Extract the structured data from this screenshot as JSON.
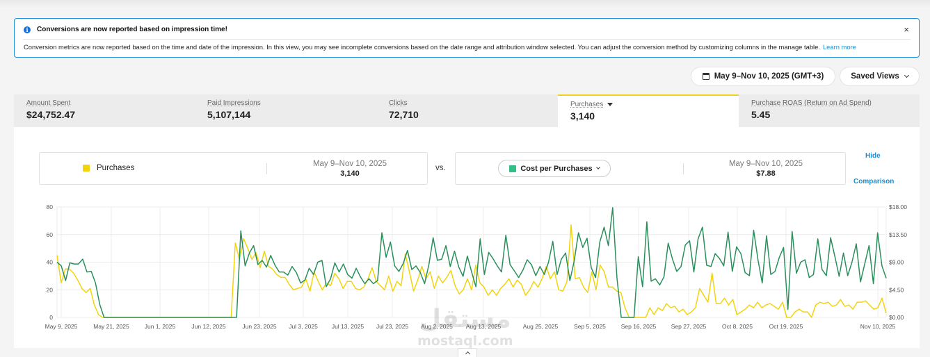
{
  "banner": {
    "title": "Conversions are now reported based on impression time!",
    "body": "Conversion metrics are now reported based on the time and date of the impression. In this view, you may see incomplete conversions based on the date range and attribution window selected. You can adjust the conversion method by customizing columns in the manage table.",
    "link": "Learn more",
    "close": "×"
  },
  "toolbar": {
    "date_range": "May 9–Nov 10, 2025 (GMT+3)",
    "saved_views": "Saved Views"
  },
  "metrics": [
    {
      "label": "Amount Spent",
      "value": "$24,752.47"
    },
    {
      "label": "Paid Impressions",
      "value": "5,107,144"
    },
    {
      "label": "Clicks",
      "value": "72,710"
    },
    {
      "label": "Purchases",
      "value": "3,140"
    },
    {
      "label": "Purchase ROAS (Return on Ad Spend)",
      "value": "5.45"
    }
  ],
  "comparison": {
    "left_metric": "Purchases",
    "left_range": "May 9–Nov 10, 2025",
    "left_value": "3,140",
    "vs": "vs.",
    "right_metric": "Cost per Purchases",
    "right_range": "May 9–Nov 10, 2025",
    "right_value": "$7.88",
    "hide": "Hide",
    "comparison": "Comparison"
  },
  "colors": {
    "purchases": "#f2d40e",
    "cost": "#2a8f5c"
  },
  "chart_data": {
    "type": "line",
    "x_ticks": [
      "May 9, 2025",
      "May 21, 2025",
      "Jun 1, 2025",
      "Jun 12, 2025",
      "Jun 23, 2025",
      "Jul 3, 2025",
      "Jul 13, 2025",
      "Jul 23, 2025",
      "Aug 2, 2025",
      "Aug 13, 2025",
      "Aug 25, 2025",
      "Sep 5, 2025",
      "Sep 16, 2025",
      "Sep 27, 2025",
      "Oct 8, 2025",
      "Oct 19, 2025",
      "Nov 10, 2025"
    ],
    "y_left_ticks": [
      "0",
      "20",
      "40",
      "60",
      "80"
    ],
    "y_right_ticks": [
      "$0.00",
      "$4.50",
      "$9.00",
      "$13.50",
      "$18.00"
    ],
    "ylim_left": [
      0,
      80
    ],
    "ylim_right": [
      0,
      18
    ],
    "grid": true,
    "series": [
      {
        "name": "Purchases",
        "axis": "left",
        "values": [
          45,
          25,
          35,
          35,
          32,
          27,
          21,
          18,
          21,
          9,
          2,
          0,
          0,
          0,
          0,
          0,
          0,
          0,
          0,
          0,
          0,
          0,
          0,
          0,
          0,
          0,
          0,
          0,
          0,
          0,
          0,
          0,
          0,
          0,
          0,
          0,
          0,
          0,
          0,
          0,
          0,
          0,
          0,
          54,
          42,
          57,
          50,
          42,
          47,
          36,
          48,
          37,
          35,
          31,
          29,
          29,
          24,
          20,
          21,
          22,
          28,
          19,
          33,
          26,
          20,
          25,
          23,
          32,
          28,
          21,
          26,
          26,
          21,
          20,
          22,
          28,
          36,
          26,
          23,
          20,
          30,
          19,
          26,
          23,
          46,
          33,
          19,
          27,
          37,
          28,
          33,
          21,
          30,
          25,
          29,
          34,
          23,
          17,
          20,
          28,
          20,
          38,
          25,
          22,
          16,
          20,
          16,
          21,
          24,
          28,
          22,
          27,
          24,
          16,
          20,
          26,
          22,
          28,
          37,
          28,
          33,
          20,
          19,
          26,
          67,
          28,
          29,
          22,
          18,
          33,
          20,
          38,
          33,
          22,
          22,
          19,
          18,
          7,
          0,
          0,
          0,
          0,
          0,
          7,
          2,
          7,
          5,
          10,
          7,
          8,
          4,
          6,
          2,
          4,
          7,
          21,
          16,
          11,
          32,
          10,
          10,
          14,
          9,
          13,
          2,
          4,
          6,
          9,
          7,
          11,
          7,
          9,
          10,
          8,
          6,
          11,
          0,
          0,
          4,
          6,
          4,
          4,
          0,
          9,
          11,
          10,
          11,
          8,
          9,
          13,
          8,
          9,
          6,
          11,
          11,
          12,
          9,
          6,
          7,
          14,
          3
        ]
      },
      {
        "name": "Cost per Purchases",
        "axis": "right",
        "values": [
          9.0,
          8.4,
          6.0,
          8.9,
          8.7,
          8.7,
          9.5,
          7.4,
          7.5,
          5.6,
          2.1,
          0,
          0,
          0,
          0,
          0,
          0,
          0,
          0,
          0,
          0,
          0,
          0,
          0,
          0,
          0,
          0,
          0,
          0,
          0,
          0,
          0,
          0,
          0,
          0,
          0,
          0,
          0,
          0,
          0,
          0,
          0,
          0,
          14.1,
          8.4,
          10.5,
          11.7,
          8.6,
          9.3,
          8.2,
          10.1,
          8.5,
          7.4,
          7.4,
          6.9,
          8.3,
          7.3,
          5.6,
          6.1,
          8.0,
          7.0,
          9.0,
          9.3,
          5.0,
          6.3,
          8.9,
          7.4,
          8.7,
          7.0,
          6.4,
          8.0,
          6.6,
          5.5,
          6.3,
          5.5,
          6.0,
          13.8,
          9.8,
          12.3,
          8.4,
          7.5,
          8.8,
          10.9,
          7.8,
          8.4,
          7.3,
          5.5,
          8.6,
          13.0,
          9.3,
          9.5,
          11.7,
          8.3,
          10.8,
          8.2,
          6.7,
          10.0,
          7.4,
          5.0,
          12.8,
          7.0,
          10.6,
          9.6,
          8.4,
          7.4,
          13.4,
          8.6,
          7.6,
          6.5,
          7.7,
          9.4,
          8.6,
          6.8,
          8.3,
          7.0,
          9.0,
          12.4,
          7.0,
          9.5,
          10.5,
          6.0,
          9.2,
          13.8,
          11.4,
          12.9,
          8.1,
          6.5,
          12.3,
          14.7,
          11.7,
          17.9,
          6.5,
          0,
          0,
          0,
          0,
          9.9,
          5.0,
          15.6,
          5.9,
          6.3,
          5.3,
          6.6,
          12.1,
          9.5,
          7.5,
          8.3,
          11.8,
          12.5,
          7.4,
          12.8,
          14.7,
          8.5,
          8.3,
          10.4,
          9.6,
          8.4,
          13.9,
          7.5,
          11.5,
          10.4,
          7.3,
          6.8,
          14.2,
          9.4,
          5.6,
          13.3,
          7.0,
          7.5,
          9.8,
          11.4,
          1.3,
          14.0,
          7.2,
          9.0,
          9.4,
          6.5,
          7.0,
          12.8,
          7.8,
          6.8,
          13.0,
          9.9,
          6.7,
          10.5,
          6.8,
          9.0,
          12.0,
          5.8,
          8.8,
          11.7,
          5.5,
          13.8,
          8.4,
          6.4
        ]
      }
    ]
  },
  "watermark": {
    "arabic": "مستقل",
    "latin": "mostaql.com"
  }
}
